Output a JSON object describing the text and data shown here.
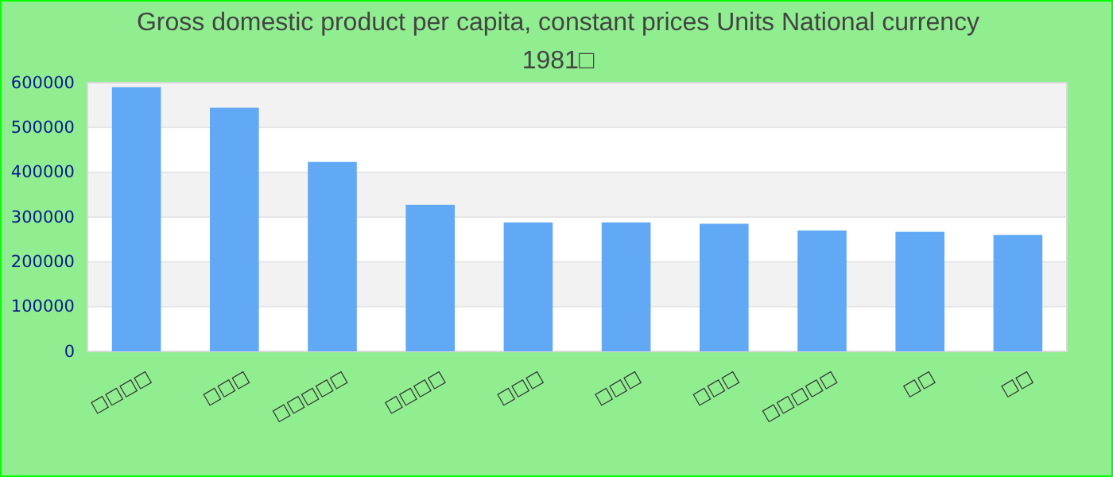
{
  "chart_data": {
    "type": "bar",
    "title": "Gross domestic product per capita, constant prices Units National currency 1981□",
    "categories": [
      "□□□□",
      "□□□",
      "□□□□□",
      "□□□□",
      "□□□",
      "□□□",
      "□□□",
      "□□□□□",
      "□□",
      "□□"
    ],
    "values": [
      590000,
      544000,
      423000,
      327000,
      288000,
      288000,
      285000,
      270000,
      267000,
      260000
    ],
    "color": "#61a8f5",
    "ylim": [
      0,
      600000
    ],
    "yticks": [
      0,
      100000,
      200000,
      300000,
      400000,
      500000,
      600000
    ],
    "grid": "y"
  }
}
